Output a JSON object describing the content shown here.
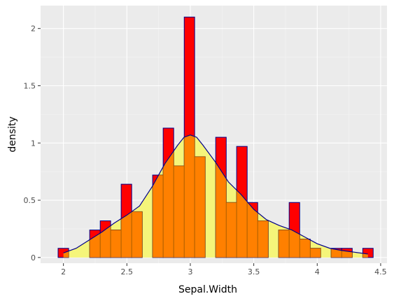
{
  "chart_data": {
    "type": "bar",
    "xlabel": "Sepal.Width",
    "ylabel": "density",
    "xlim": [
      1.82,
      4.55
    ],
    "ylim": [
      -0.05,
      2.2
    ],
    "xticks": [
      2,
      2.5,
      3,
      3.5,
      4,
      4.5
    ],
    "xtick_labels": [
      "2",
      "2.5",
      "3",
      "3.5",
      "4",
      "4.5"
    ],
    "yticks": [
      0,
      0.5,
      1,
      1.5,
      2
    ],
    "ytick_labels": [
      "0",
      "0.5",
      "1",
      "1.5",
      "2"
    ],
    "grid": true,
    "bin_width": 0.08276,
    "series": [
      {
        "kind": "histogram",
        "fill": "#ff0000",
        "edge": "#00008b",
        "bins": [
          {
            "x0": 1.958,
            "x1": 2.041,
            "y": 0.08
          },
          {
            "x0": 2.207,
            "x1": 2.29,
            "y": 0.24
          },
          {
            "x0": 2.29,
            "x1": 2.372,
            "y": 0.32
          },
          {
            "x0": 2.372,
            "x1": 2.455,
            "y": 0.24
          },
          {
            "x0": 2.455,
            "x1": 2.538,
            "y": 0.64
          },
          {
            "x0": 2.538,
            "x1": 2.621,
            "y": 0.4
          },
          {
            "x0": 2.703,
            "x1": 2.786,
            "y": 0.72
          },
          {
            "x0": 2.786,
            "x1": 2.869,
            "y": 1.13
          },
          {
            "x0": 2.869,
            "x1": 2.952,
            "y": 0.8
          },
          {
            "x0": 2.952,
            "x1": 3.034,
            "y": 2.1
          },
          {
            "x0": 3.034,
            "x1": 3.117,
            "y": 0.88
          },
          {
            "x0": 3.2,
            "x1": 3.283,
            "y": 1.05
          },
          {
            "x0": 3.283,
            "x1": 3.365,
            "y": 0.48
          },
          {
            "x0": 3.365,
            "x1": 3.448,
            "y": 0.97
          },
          {
            "x0": 3.448,
            "x1": 3.531,
            "y": 0.48
          },
          {
            "x0": 3.531,
            "x1": 3.614,
            "y": 0.32
          },
          {
            "x0": 3.696,
            "x1": 3.779,
            "y": 0.24
          },
          {
            "x0": 3.779,
            "x1": 3.862,
            "y": 0.48
          },
          {
            "x0": 3.862,
            "x1": 3.945,
            "y": 0.16
          },
          {
            "x0": 3.945,
            "x1": 4.027,
            "y": 0.08
          },
          {
            "x0": 4.11,
            "x1": 4.193,
            "y": 0.08
          },
          {
            "x0": 4.193,
            "x1": 4.276,
            "y": 0.08
          },
          {
            "x0": 4.359,
            "x1": 4.441,
            "y": 0.08
          }
        ]
      },
      {
        "kind": "density",
        "fill": "#f5f57a",
        "stroke": "#00008b",
        "points": [
          [
            2.0,
            0.04
          ],
          [
            2.1,
            0.08
          ],
          [
            2.2,
            0.15
          ],
          [
            2.3,
            0.22
          ],
          [
            2.4,
            0.3
          ],
          [
            2.5,
            0.37
          ],
          [
            2.6,
            0.45
          ],
          [
            2.7,
            0.62
          ],
          [
            2.8,
            0.82
          ],
          [
            2.9,
            0.98
          ],
          [
            2.95,
            1.05
          ],
          [
            3.0,
            1.07
          ],
          [
            3.05,
            1.05
          ],
          [
            3.1,
            0.98
          ],
          [
            3.2,
            0.83
          ],
          [
            3.3,
            0.66
          ],
          [
            3.4,
            0.55
          ],
          [
            3.5,
            0.42
          ],
          [
            3.6,
            0.33
          ],
          [
            3.7,
            0.28
          ],
          [
            3.8,
            0.24
          ],
          [
            3.9,
            0.18
          ],
          [
            4.0,
            0.12
          ],
          [
            4.1,
            0.08
          ],
          [
            4.2,
            0.06
          ],
          [
            4.3,
            0.045
          ],
          [
            4.4,
            0.03
          ]
        ]
      }
    ],
    "overlap_color": "#ff8000"
  }
}
